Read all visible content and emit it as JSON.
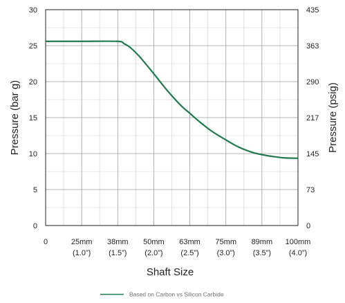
{
  "chart_data": {
    "type": "line",
    "xlabel": "Shaft Size",
    "ylabel": "Pressure (bar g)",
    "y2label": "Pressure (psig)",
    "x_ticks": [
      {
        "mm": 0,
        "label": "0",
        "sub": ""
      },
      {
        "mm": 25,
        "label": "25mm",
        "sub": "(1.0”)"
      },
      {
        "mm": 38,
        "label": "38mm",
        "sub": "(1.5”)"
      },
      {
        "mm": 50,
        "label": "50mm",
        "sub": "(2.0”)"
      },
      {
        "mm": 63,
        "label": "63mm",
        "sub": "(2.5”)"
      },
      {
        "mm": 75,
        "label": "75mm",
        "sub": "(3.0”)"
      },
      {
        "mm": 89,
        "label": "89mm",
        "sub": "(3.5”)"
      },
      {
        "mm": 100,
        "label": "100mm",
        "sub": "(4.0”)"
      }
    ],
    "ylim": [
      0,
      30
    ],
    "y_ticks": [
      0,
      5,
      10,
      15,
      20,
      25,
      30
    ],
    "y2_ticks": [
      "0",
      "73",
      "145",
      "217",
      "290",
      "363",
      "435"
    ],
    "grid": true,
    "legend_position": "bottom-center",
    "series": [
      {
        "name": "Based on Carbon vs Silicon Carbide",
        "color": "#1e7a4a",
        "x": [
          0,
          13,
          25,
          38,
          40,
          42,
          45,
          50,
          55,
          60,
          63,
          66,
          70,
          75,
          80,
          85,
          89,
          93,
          96,
          100
        ],
        "y": [
          25.6,
          25.6,
          25.6,
          25.6,
          25.3,
          24.8,
          23.6,
          21.1,
          18.7,
          16.6,
          15.6,
          14.5,
          13.2,
          11.9,
          10.9,
          10.2,
          9.85,
          9.55,
          9.4,
          9.35
        ]
      }
    ]
  }
}
